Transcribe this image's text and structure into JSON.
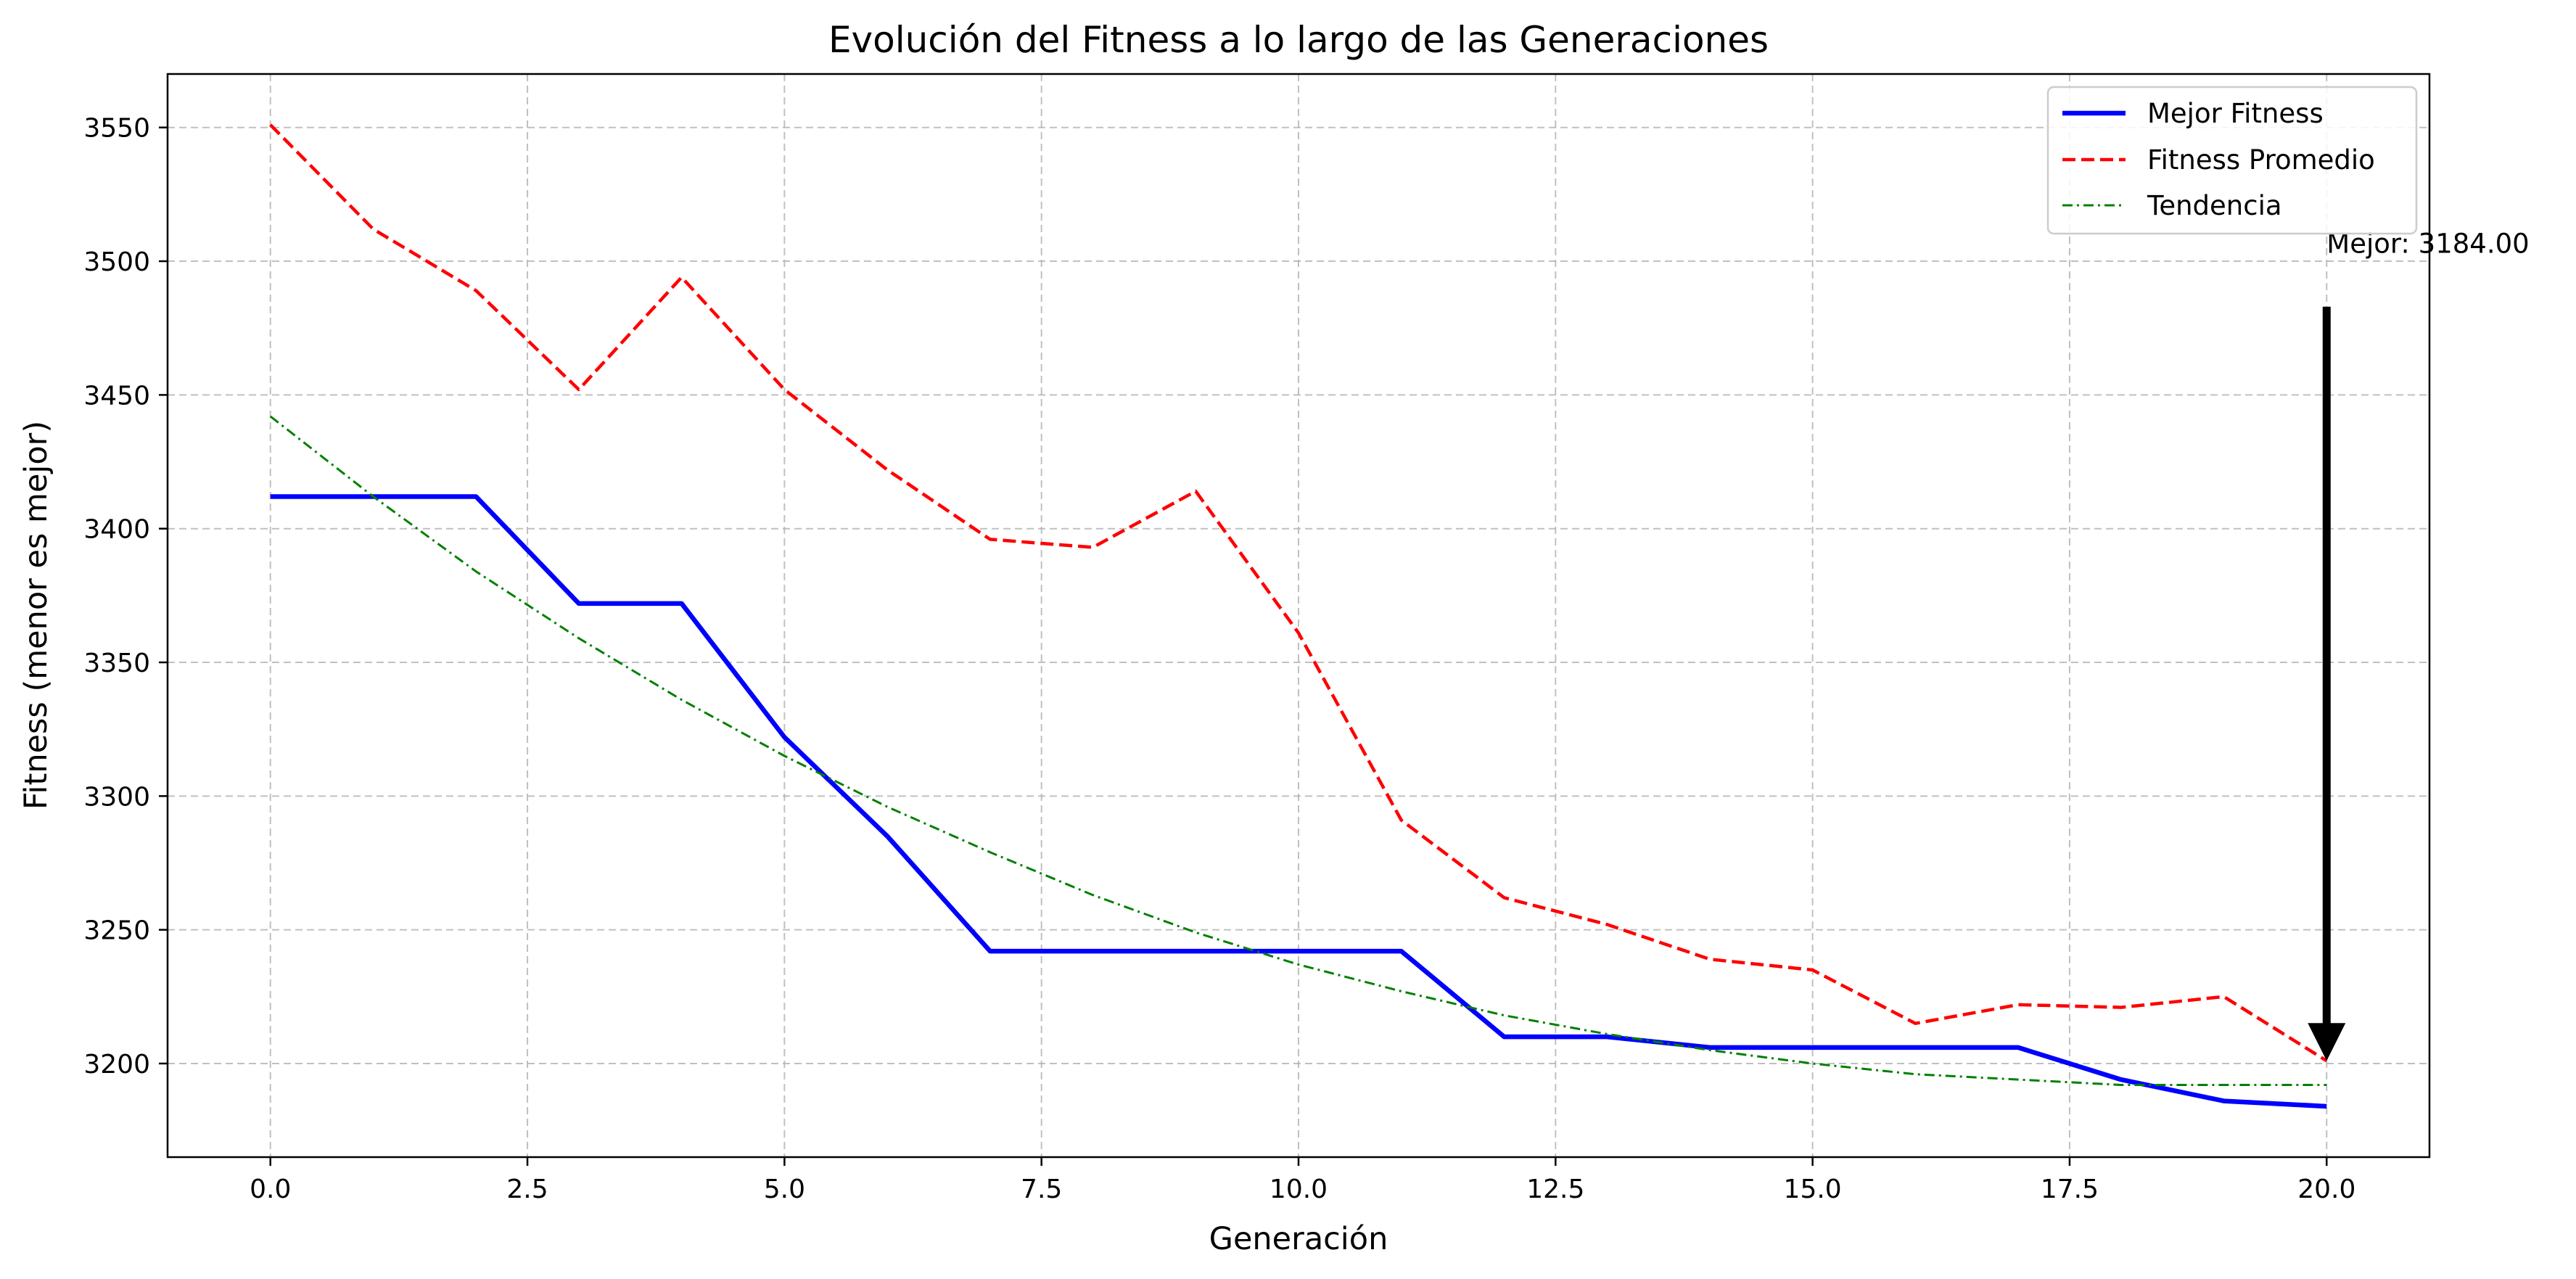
{
  "chart_data": {
    "type": "line",
    "title": "Evolución del Fitness a lo largo de las Generaciones",
    "xlabel": "Generación",
    "ylabel": "Fitness (menor es mejor)",
    "xlim": [
      -1,
      21
    ],
    "ylim": [
      3165,
      3570
    ],
    "x_ticks": [
      0,
      2.5,
      5,
      7.5,
      10,
      12.5,
      15,
      17.5,
      20
    ],
    "x_tick_labels": [
      "0.0",
      "2.5",
      "5.0",
      "7.5",
      "10.0",
      "12.5",
      "15.0",
      "17.5",
      "20.0"
    ],
    "y_ticks": [
      3200,
      3250,
      3300,
      3350,
      3400,
      3450,
      3500,
      3550
    ],
    "y_tick_labels": [
      "3200",
      "3250",
      "3300",
      "3350",
      "3400",
      "3450",
      "3500",
      "3550"
    ],
    "grid": true,
    "legend_position": "top-right",
    "x": [
      0,
      1,
      2,
      3,
      4,
      5,
      6,
      7,
      8,
      9,
      10,
      11,
      12,
      13,
      14,
      15,
      16,
      17,
      18,
      19,
      20
    ],
    "series": [
      {
        "name": "Mejor Fitness",
        "color": "#0000ff",
        "style": "solid",
        "values": [
          3412,
          3412,
          3412,
          3372,
          3372,
          3322,
          3285,
          3242,
          3242,
          3242,
          3242,
          3242,
          3210,
          3210,
          3206,
          3206,
          3206,
          3206,
          3194,
          3186,
          3184
        ]
      },
      {
        "name": "Fitness Promedio",
        "color": "#ff0000",
        "style": "dashed",
        "values": [
          3551,
          3512,
          3489,
          3452,
          3494,
          3452,
          3422,
          3396,
          3393,
          3414,
          3361,
          3291,
          3262,
          3252,
          3239,
          3235,
          3215,
          3222,
          3221,
          3225,
          3201
        ]
      },
      {
        "name": "Tendencia",
        "color": "#008000",
        "style": "dashdot",
        "values": [
          3442,
          3412,
          3384,
          3359,
          3336,
          3315,
          3296,
          3279,
          3263,
          3249,
          3237,
          3227,
          3218,
          3211,
          3205,
          3200,
          3196,
          3194,
          3192,
          3192,
          3192
        ]
      }
    ],
    "annotation": {
      "text": "Mejor: 3184.00",
      "x": 20,
      "arrow_start_y": 3483,
      "arrow_end_y": 3201
    }
  }
}
